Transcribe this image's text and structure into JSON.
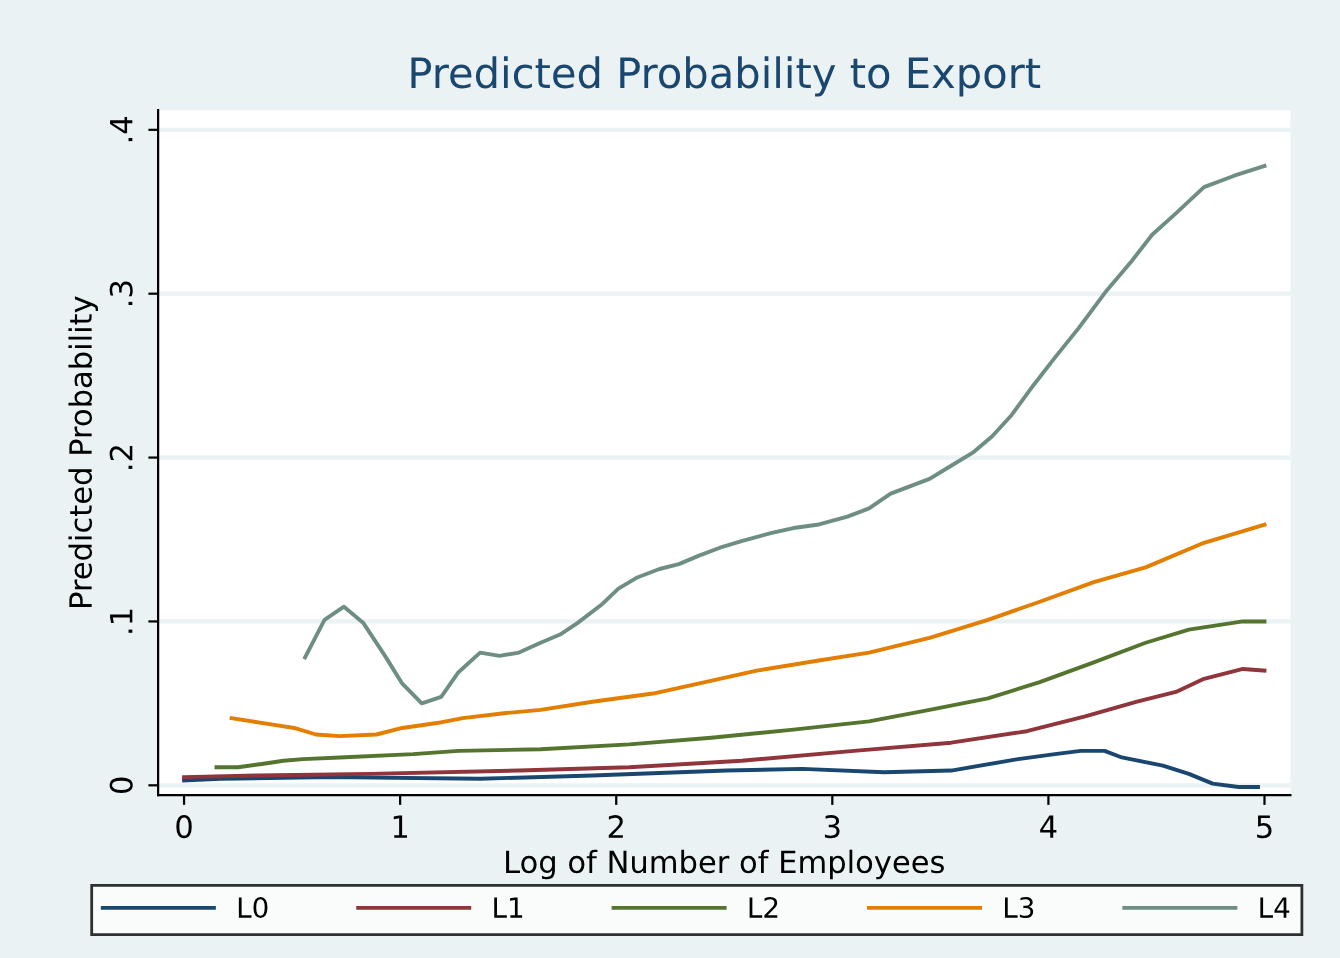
{
  "chart_data": {
    "type": "line",
    "title": "Predicted Probability to Export",
    "xlabel": "Log of Number of Employees",
    "ylabel": "Predicted Probability",
    "xlim": [
      -0.12,
      5.12
    ],
    "ylim": [
      -0.006,
      0.412
    ],
    "xticks": [
      0,
      1,
      2,
      3,
      4,
      5
    ],
    "yticks": [
      {
        "value": 0,
        "label": "0"
      },
      {
        "value": 0.1,
        "label": ".1"
      },
      {
        "value": 0.2,
        "label": ".2"
      },
      {
        "value": 0.3,
        "label": ".3"
      },
      {
        "value": 0.4,
        "label": ".4"
      }
    ],
    "grid": "y",
    "legend": "bottom",
    "marker": "none",
    "line_style": "solid",
    "series": [
      {
        "name": "L0",
        "color": "#1a476f",
        "x": [
          0,
          0.17,
          0.68,
          1.37,
          1.89,
          2.51,
          2.86,
          3.24,
          3.55,
          3.86,
          4.03,
          4.15,
          4.26,
          4.34,
          4.53,
          4.65,
          4.76,
          4.88,
          4.97
        ],
        "values": [
          0.003,
          0.004,
          0.005,
          0.004,
          0.006,
          0.009,
          0.01,
          0.008,
          0.009,
          0.016,
          0.019,
          0.021,
          0.021,
          0.017,
          0.012,
          0.007,
          0.001,
          -0.001,
          -0.001
        ]
      },
      {
        "name": "L1",
        "color": "#90353b",
        "x": [
          0,
          0.34,
          0.86,
          1.55,
          2.06,
          2.58,
          3.1,
          3.55,
          3.9,
          4.17,
          4.41,
          4.59,
          4.72,
          4.9,
          5.0
        ],
        "values": [
          0.005,
          0.006,
          0.007,
          0.009,
          0.011,
          0.015,
          0.021,
          0.026,
          0.033,
          0.042,
          0.051,
          0.057,
          0.065,
          0.071,
          0.07
        ]
      },
      {
        "name": "L2",
        "color": "#55752f",
        "x": [
          0.15,
          0.25,
          0.36,
          0.46,
          0.55,
          0.72,
          1.06,
          1.27,
          1.65,
          2.06,
          2.44,
          2.82,
          3.17,
          3.45,
          3.72,
          3.96,
          4.21,
          4.45,
          4.65,
          4.9,
          5.0
        ],
        "values": [
          0.011,
          0.011,
          0.013,
          0.015,
          0.016,
          0.017,
          0.019,
          0.021,
          0.022,
          0.025,
          0.029,
          0.034,
          0.039,
          0.046,
          0.053,
          0.063,
          0.075,
          0.087,
          0.095,
          0.1,
          0.1
        ]
      },
      {
        "name": "L3",
        "color": "#e37e00",
        "x": [
          0.22,
          0.41,
          0.51,
          0.61,
          0.72,
          0.89,
          1.01,
          1.17,
          1.29,
          1.48,
          1.65,
          1.89,
          2.17,
          2.38,
          2.65,
          2.93,
          3.17,
          3.45,
          3.72,
          3.96,
          4.21,
          4.45,
          4.72,
          5.0
        ],
        "values": [
          0.041,
          0.037,
          0.035,
          0.031,
          0.03,
          0.031,
          0.035,
          0.038,
          0.041,
          0.044,
          0.046,
          0.051,
          0.056,
          0.062,
          0.07,
          0.076,
          0.081,
          0.09,
          0.101,
          0.112,
          0.124,
          0.133,
          0.148,
          0.159
        ]
      },
      {
        "name": "L4",
        "color": "#6e8e84",
        "x": [
          0.56,
          0.65,
          0.74,
          0.83,
          0.93,
          1.01,
          1.1,
          1.19,
          1.27,
          1.37,
          1.46,
          1.55,
          1.65,
          1.74,
          1.82,
          1.93,
          2.01,
          2.1,
          2.2,
          2.29,
          2.38,
          2.48,
          2.58,
          2.72,
          2.82,
          2.93,
          3.07,
          3.17,
          3.27,
          3.45,
          3.55,
          3.65,
          3.74,
          3.83,
          3.93,
          4.03,
          4.14,
          4.27,
          4.38,
          4.48,
          4.59,
          4.72,
          4.86,
          5.0
        ],
        "values": [
          0.078,
          0.101,
          0.109,
          0.099,
          0.079,
          0.062,
          0.05,
          0.054,
          0.069,
          0.081,
          0.079,
          0.081,
          0.087,
          0.092,
          0.099,
          0.11,
          0.12,
          0.127,
          0.132,
          0.135,
          0.14,
          0.145,
          0.149,
          0.154,
          0.157,
          0.159,
          0.164,
          0.169,
          0.178,
          0.187,
          0.195,
          0.203,
          0.213,
          0.226,
          0.244,
          0.261,
          0.279,
          0.302,
          0.319,
          0.336,
          0.349,
          0.365,
          0.372,
          0.378
        ]
      }
    ]
  }
}
